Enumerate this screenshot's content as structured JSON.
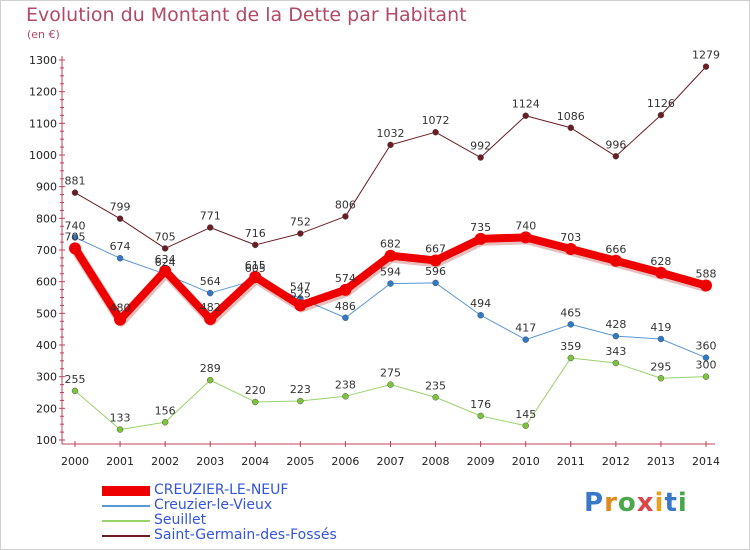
{
  "title": "Evolution du Montant de la Dette par Habitant",
  "unit": "(en €)",
  "logo": {
    "text": "Proxiti",
    "letters": [
      "P",
      "r",
      "o",
      "x",
      "i",
      "t",
      "i"
    ],
    "colors": [
      "#3a78c8",
      "#e08a1e",
      "#4aa84a",
      "#d94848",
      "#e8a21e",
      "#3a78c8",
      "#4aa84a"
    ]
  },
  "chart_data": {
    "type": "line",
    "x": [
      2000,
      2001,
      2002,
      2003,
      2004,
      2005,
      2006,
      2007,
      2008,
      2009,
      2010,
      2011,
      2012,
      2013,
      2014
    ],
    "ylim": [
      100,
      1300
    ],
    "yticks": [
      100,
      200,
      300,
      400,
      500,
      600,
      700,
      800,
      900,
      1000,
      1100,
      1200,
      1300
    ],
    "grid": false,
    "legend_position": "bottom-left",
    "series": [
      {
        "name": "Saint-Germain-des-Fossés",
        "color": "#6b1d23",
        "width": 1,
        "values": [
          881,
          799,
          705,
          771,
          716,
          752,
          806,
          1032,
          1072,
          992,
          1124,
          1086,
          996,
          1126,
          1279
        ]
      },
      {
        "name": "Seuillet",
        "color": "#99d26b",
        "marker": "#7cc43c",
        "width": 1,
        "values": [
          255,
          133,
          156,
          289,
          220,
          223,
          238,
          275,
          235,
          176,
          145,
          359,
          343,
          295,
          300
        ]
      },
      {
        "name": "Creuzier-le-Vieux",
        "color": "#5b97d6",
        "marker": "#2f7ac8",
        "width": 1,
        "values": [
          740,
          674,
          624,
          564,
          605,
          547,
          486,
          594,
          596,
          494,
          417,
          465,
          428,
          419,
          360
        ]
      },
      {
        "name": "CREUZIER-LE-NEUF",
        "color": "#ee0000",
        "width": 8,
        "values": [
          705,
          480,
          634,
          482,
          615,
          525,
          574,
          682,
          667,
          735,
          740,
          703,
          666,
          628,
          588
        ]
      }
    ]
  }
}
